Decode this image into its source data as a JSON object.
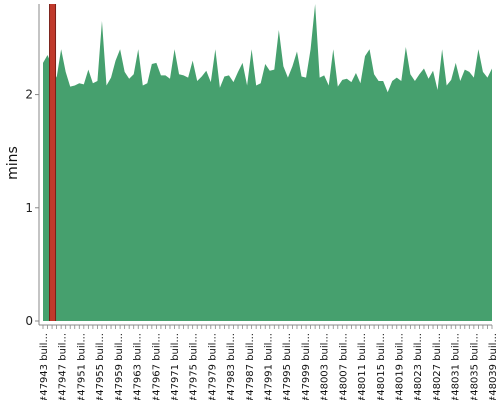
{
  "chart_data": {
    "type": "area",
    "ylabel": "mins",
    "ylim": [
      0,
      2.8
    ],
    "yticks": [
      0,
      1,
      2
    ],
    "grid": true,
    "colors": {
      "area": "#46a06e",
      "grid": "#2e6e48",
      "highlight": "#c0392b",
      "axis": "#888888"
    },
    "highlight_index": 1,
    "x_labels": [
      "#47943 buil...",
      "#47947 buil...",
      "#47951 buil...",
      "#47955 buil...",
      "#47959 buil...",
      "#47963 buil...",
      "#47967 buil...",
      "#47971 buil...",
      "#47975 buil...",
      "#47979 buil...",
      "#47983 buil...",
      "#47987 buil...",
      "#47991 buil...",
      "#47995 buil...",
      "#47999 buil...",
      "#48003 buil...",
      "#48007 buil...",
      "#48011 buil...",
      "#48015 buil...",
      "#48019 buil...",
      "#48023 buil...",
      "#48027 buil...",
      "#48031 buil...",
      "#48035 buil...",
      "#48039 buil..."
    ],
    "values": [
      2.28,
      2.35,
      2.25,
      2.15,
      2.4,
      2.2,
      2.07,
      2.08,
      2.1,
      2.09,
      2.22,
      2.1,
      2.12,
      2.65,
      2.08,
      2.15,
      2.3,
      2.4,
      2.2,
      2.14,
      2.18,
      2.4,
      2.08,
      2.1,
      2.27,
      2.28,
      2.17,
      2.17,
      2.14,
      2.4,
      2.18,
      2.17,
      2.15,
      2.3,
      2.12,
      2.16,
      2.21,
      2.11,
      2.4,
      2.06,
      2.16,
      2.17,
      2.11,
      2.2,
      2.28,
      2.08,
      2.4,
      2.08,
      2.1,
      2.27,
      2.21,
      2.22,
      2.57,
      2.25,
      2.15,
      2.25,
      2.38,
      2.16,
      2.15,
      2.4,
      2.8,
      2.15,
      2.17,
      2.08,
      2.4,
      2.07,
      2.13,
      2.14,
      2.11,
      2.19,
      2.1,
      2.34,
      2.4,
      2.18,
      2.12,
      2.12,
      2.02,
      2.12,
      2.15,
      2.12,
      2.42,
      2.18,
      2.12,
      2.18,
      2.23,
      2.14,
      2.21,
      2.04,
      2.4,
      2.08,
      2.13,
      2.28,
      2.12,
      2.22,
      2.2,
      2.15,
      2.4,
      2.2,
      2.15,
      2.23
    ]
  }
}
